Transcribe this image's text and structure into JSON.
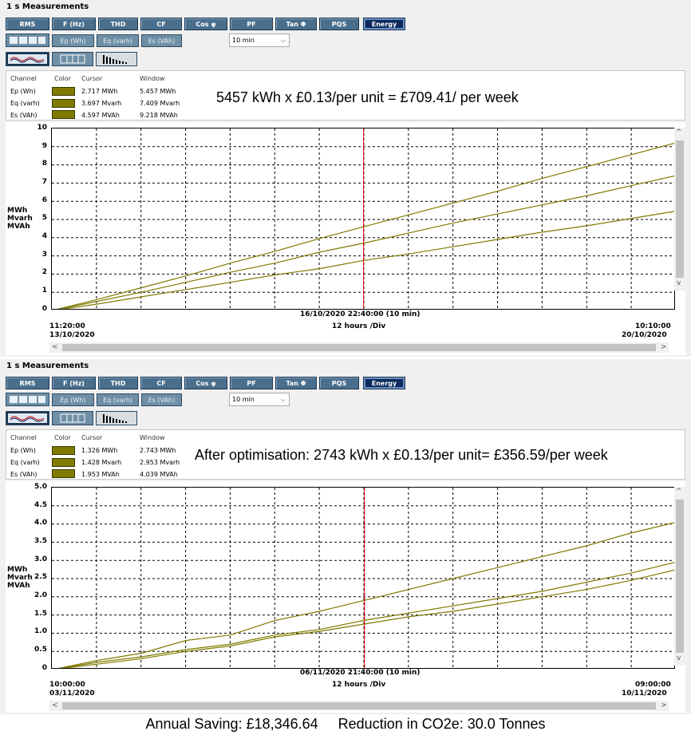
{
  "panels": [
    {
      "title": "1 s Measurements",
      "buttons": [
        "RMS",
        "F (Hz)",
        "THD",
        "CF",
        "Cos φ",
        "PF",
        "Tan Φ",
        "PQS",
        "Energy"
      ],
      "energy_buttons": [
        "Ep (Wh)",
        "Eq (varh)",
        "Es (VAh)"
      ],
      "dropdown": "10 min",
      "table": {
        "headers": [
          "Channel",
          "Color",
          "Cursor",
          "Window"
        ],
        "rows": [
          {
            "channel": "Ep (Wh)",
            "cursor": "2.717 MWh",
            "window": "5.457 MWh"
          },
          {
            "channel": "Eq (varh)",
            "cursor": "3.697 Mvarh",
            "window": "7.409 Mvarh"
          },
          {
            "channel": "Es (VAh)",
            "cursor": "4.597 MVAh",
            "window": "9.218 MVAh"
          }
        ]
      },
      "annotation": "5457 kWh x £0.13/per unit = £709.41/ per week",
      "y_unit_labels": [
        "MWh",
        "Mvarh",
        "MVAh"
      ],
      "y_ticks": [
        "10",
        "9",
        "8",
        "7",
        "6",
        "5",
        "4",
        "3",
        "2",
        "1",
        "0"
      ],
      "cursor_label": "16/10/2020 22:40:00 (10 min)",
      "division_label": "12 hours /Div",
      "x_start": [
        "11:20:00",
        "13/10/2020"
      ],
      "x_end": [
        "10:10:00",
        "20/10/2020"
      ]
    },
    {
      "title": "1 s Measurements",
      "buttons": [
        "RMS",
        "F (Hz)",
        "THD",
        "CF",
        "Cos φ",
        "PF",
        "Tan Φ",
        "PQS",
        "Energy"
      ],
      "energy_buttons": [
        "Ep (Wh)",
        "Eq (varh)",
        "Es (VAh)"
      ],
      "dropdown": "10 min",
      "table": {
        "headers": [
          "Channel",
          "Color",
          "Cursor",
          "Window"
        ],
        "rows": [
          {
            "channel": "Ep (Wh)",
            "cursor": "1.326 MWh",
            "window": "2.743 MWh"
          },
          {
            "channel": "Eq (varh)",
            "cursor": "1.428 Mvarh",
            "window": "2.953 Mvarh"
          },
          {
            "channel": "Es (VAh)",
            "cursor": "1.953 MVAh",
            "window": "4.039 MVAh"
          }
        ]
      },
      "annotation": "After optimisation: 2743 kWh x £0.13/per unit= £356.59/per week",
      "y_unit_labels": [
        "MWh",
        "Mvarh",
        "MVAh"
      ],
      "y_ticks": [
        "5.0",
        "4.5",
        "4.0",
        "3.5",
        "3.0",
        "2.5",
        "2.0",
        "1.5",
        "1.0",
        "0.5",
        "0"
      ],
      "cursor_label": "06/11/2020 21:40:00 (10 min)",
      "division_label": "12 hours /Div",
      "x_start": [
        "10:00:00",
        "03/11/2020"
      ],
      "x_end": [
        "09:00:00",
        "10/11/2020"
      ]
    }
  ],
  "footer": "Annual Saving: £18,346.64     Reduction in CO2e: 30.0 Tonnes",
  "colors": {
    "series": "#807a00",
    "cursor": "#e00000",
    "button": "#4a6f8c",
    "selected_button": "#0c2a5c"
  },
  "chart_data": [
    {
      "type": "line",
      "xlabel": "12 hours /Div",
      "ylabel": "MWh Mvarh MVAh",
      "ylim": [
        0,
        10
      ],
      "xlim": [
        "13/10/2020 11:20:00",
        "20/10/2020 10:10:00"
      ],
      "cursor_x": "16/10/2020 22:40:00",
      "grid": true,
      "x": [
        0,
        1,
        2,
        3,
        4,
        5,
        6,
        7,
        8,
        9,
        10,
        11,
        12,
        13,
        14
      ],
      "series": [
        {
          "name": "Ep (Wh)",
          "values": [
            0,
            0.35,
            0.75,
            1.15,
            1.55,
            1.95,
            2.3,
            2.75,
            3.1,
            3.5,
            3.9,
            4.3,
            4.65,
            5.05,
            5.45
          ]
        },
        {
          "name": "Eq (varh)",
          "values": [
            0,
            0.5,
            1.0,
            1.55,
            2.1,
            2.6,
            3.2,
            3.7,
            4.25,
            4.8,
            5.3,
            5.8,
            6.3,
            6.85,
            7.4
          ]
        },
        {
          "name": "Es (VAh)",
          "values": [
            0,
            0.6,
            1.25,
            1.9,
            2.6,
            3.25,
            3.95,
            4.6,
            5.25,
            5.9,
            6.55,
            7.25,
            7.9,
            8.55,
            9.2
          ]
        }
      ]
    },
    {
      "type": "line",
      "xlabel": "12 hours /Div",
      "ylabel": "MWh Mvarh MVAh",
      "ylim": [
        0,
        5
      ],
      "xlim": [
        "03/11/2020 10:00:00",
        "10/11/2020 09:00:00"
      ],
      "cursor_x": "06/11/2020 21:40:00",
      "grid": true,
      "x": [
        0,
        1,
        2,
        3,
        4,
        5,
        6,
        7,
        8,
        9,
        10,
        11,
        12,
        13,
        14
      ],
      "series": [
        {
          "name": "Ep (Wh)",
          "values": [
            0,
            0.15,
            0.3,
            0.5,
            0.65,
            0.9,
            1.05,
            1.25,
            1.45,
            1.6,
            1.8,
            2.0,
            2.2,
            2.45,
            2.74
          ]
        },
        {
          "name": "Eq (varh)",
          "values": [
            0,
            0.2,
            0.35,
            0.55,
            0.7,
            0.95,
            1.1,
            1.35,
            1.55,
            1.75,
            1.95,
            2.15,
            2.4,
            2.65,
            2.95
          ]
        },
        {
          "name": "Es (VAh)",
          "values": [
            0,
            0.25,
            0.45,
            0.8,
            0.95,
            1.35,
            1.6,
            1.9,
            2.2,
            2.5,
            2.8,
            3.1,
            3.4,
            3.75,
            4.04
          ]
        }
      ]
    }
  ]
}
